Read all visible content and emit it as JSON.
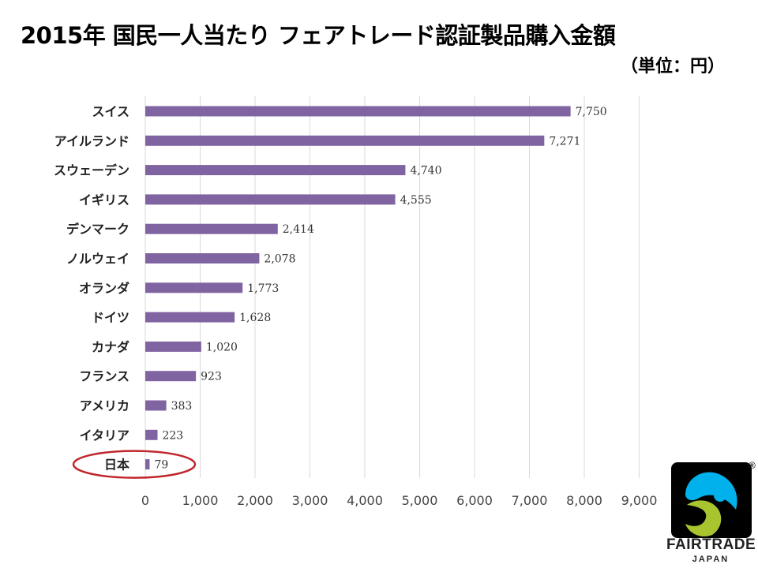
{
  "chart_data": {
    "type": "bar",
    "orientation": "horizontal",
    "title": "2015年 国民一人当たり フェアトレード認証製品購入金額",
    "unit_label": "（単位：円）",
    "categories": [
      "スイス",
      "アイルランド",
      "スウェーデン",
      "イギリス",
      "デンマーク",
      "ノルウェイ",
      "オランダ",
      "ドイツ",
      "カナダ",
      "フランス",
      "アメリカ",
      "イタリア",
      "日本"
    ],
    "values": [
      7750,
      7271,
      4740,
      4555,
      2414,
      2078,
      1773,
      1628,
      1020,
      923,
      383,
      223,
      79
    ],
    "value_labels": [
      "7,750",
      "7,271",
      "4,740",
      "4,555",
      "2,414",
      "2,078",
      "1,773",
      "1,628",
      "1,020",
      "923",
      "383",
      "223",
      "79"
    ],
    "xlim": [
      0,
      9000
    ],
    "xticks": [
      0,
      1000,
      2000,
      3000,
      4000,
      5000,
      6000,
      7000,
      8000,
      9000
    ],
    "xtick_labels": [
      "0",
      "1,000",
      "2,000",
      "3,000",
      "4,000",
      "5,000",
      "6,000",
      "7,000",
      "8,000",
      "9,000"
    ],
    "highlighted_category": "日本",
    "grid": true,
    "bar_color": "#8064a2",
    "highlight_color": "#c0272d"
  },
  "logo": {
    "name": "FAIRTRADE",
    "sub": "JAPAN",
    "registered_mark": "®",
    "colors": {
      "blue": "#00b1eb",
      "green": "#a8c530",
      "black": "#000000"
    }
  }
}
